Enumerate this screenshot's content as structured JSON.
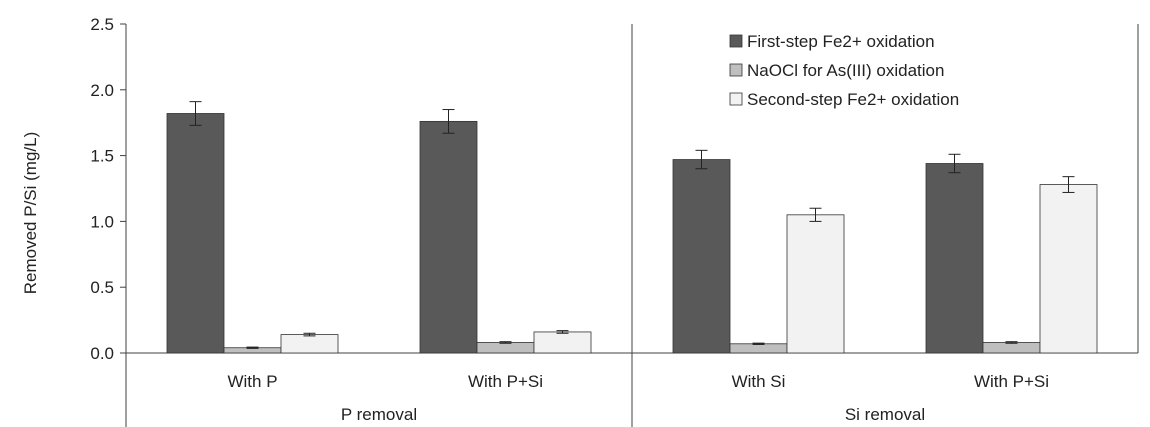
{
  "chart_data": {
    "type": "bar",
    "title": "",
    "xlabel": "",
    "ylabel": "Removed P/Si (mg/L)",
    "ylim": [
      0,
      2.5
    ],
    "yticks": [
      "0.0",
      "0.5",
      "1.0",
      "1.5",
      "2.0",
      "2.5"
    ],
    "grid": false,
    "legend_position": "top-right",
    "categories": [
      "With P",
      "With P+Si",
      "With Si",
      "With P+Si"
    ],
    "groups": [
      {
        "label": "P removal",
        "categories": [
          0,
          1
        ]
      },
      {
        "label": "Si removal",
        "categories": [
          2,
          3
        ]
      }
    ],
    "series": [
      {
        "name": "First-step Fe2+ oxidation",
        "color": "#595959",
        "values": [
          1.82,
          1.76,
          1.47,
          1.44
        ],
        "errors": [
          0.09,
          0.09,
          0.07,
          0.07
        ]
      },
      {
        "name": "NaOCl for As(III) oxidation",
        "color": "#bfbfbf",
        "values": [
          0.04,
          0.08,
          0.07,
          0.08
        ],
        "errors": [
          0.005,
          0.006,
          0.005,
          0.006
        ]
      },
      {
        "name": "Second-step Fe2+ oxidation",
        "color": "#f2f2f2",
        "values": [
          0.14,
          0.16,
          1.05,
          1.28
        ],
        "errors": [
          0.01,
          0.01,
          0.05,
          0.06
        ]
      }
    ]
  }
}
